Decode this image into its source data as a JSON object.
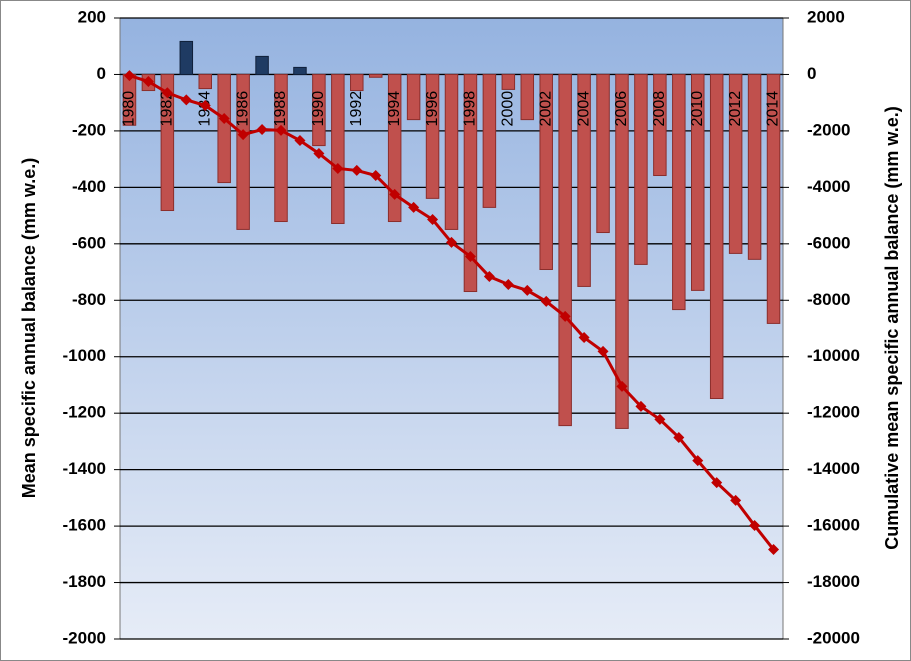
{
  "chart_data": {
    "type": "bar",
    "y_label": "Mean specific annual balance (mm w.e.)",
    "y2_label": "Cumulative mean specific annual balance (mm w.e.)",
    "categories": [
      "1980",
      null,
      "1982",
      null,
      "1984",
      null,
      "1986",
      null,
      "1988",
      null,
      "1990",
      null,
      "1992",
      null,
      "1994",
      null,
      "1996",
      null,
      "1998",
      null,
      "2000",
      null,
      "2002",
      null,
      "2004",
      null,
      "2006",
      null,
      "2008",
      null,
      "2010",
      null,
      "2012",
      null,
      "2014"
    ],
    "series": [
      {
        "type": "bar",
        "color": "#c0504d",
        "positive_color": "#1f3b63",
        "values": [
          -180,
          -57,
          -482,
          117,
          -50,
          -383,
          -549,
          64,
          -521,
          25,
          -252,
          -528,
          -57,
          -10,
          -521,
          -160,
          -439,
          -549,
          -769,
          -471,
          -53,
          -160,
          -691,
          -1244,
          -751,
          -560,
          -1254,
          -673,
          -358,
          -833,
          -765,
          -1148,
          -634,
          -655,
          -882
        ]
      },
      {
        "type": "line",
        "axis": "y2",
        "color": "#c00000",
        "values": [
          -40,
          -250,
          -650,
          -900,
          -1100,
          -1560,
          -2130,
          -1950,
          -1980,
          -2340,
          -2800,
          -3330,
          -3400,
          -3580,
          -4250,
          -4710,
          -5140,
          -5950,
          -6450,
          -7160,
          -7440,
          -7650,
          -8040,
          -8570,
          -9320,
          -9810,
          -11050,
          -11760,
          -12220,
          -12860,
          -13680,
          -14460,
          -15090,
          -15980,
          -16830
        ]
      }
    ],
    "ylim": [
      -2000,
      200
    ],
    "yticks": [
      -2000,
      -1800,
      -1600,
      -1400,
      -1200,
      -1000,
      -800,
      -600,
      -400,
      -200,
      0,
      200
    ],
    "y2lim": [
      -20000,
      2000
    ],
    "y2ticks": [
      -20000,
      -18000,
      -16000,
      -14000,
      -12000,
      -10000,
      -8000,
      -6000,
      -4000,
      -2000,
      0,
      2000
    ],
    "grid": true
  }
}
